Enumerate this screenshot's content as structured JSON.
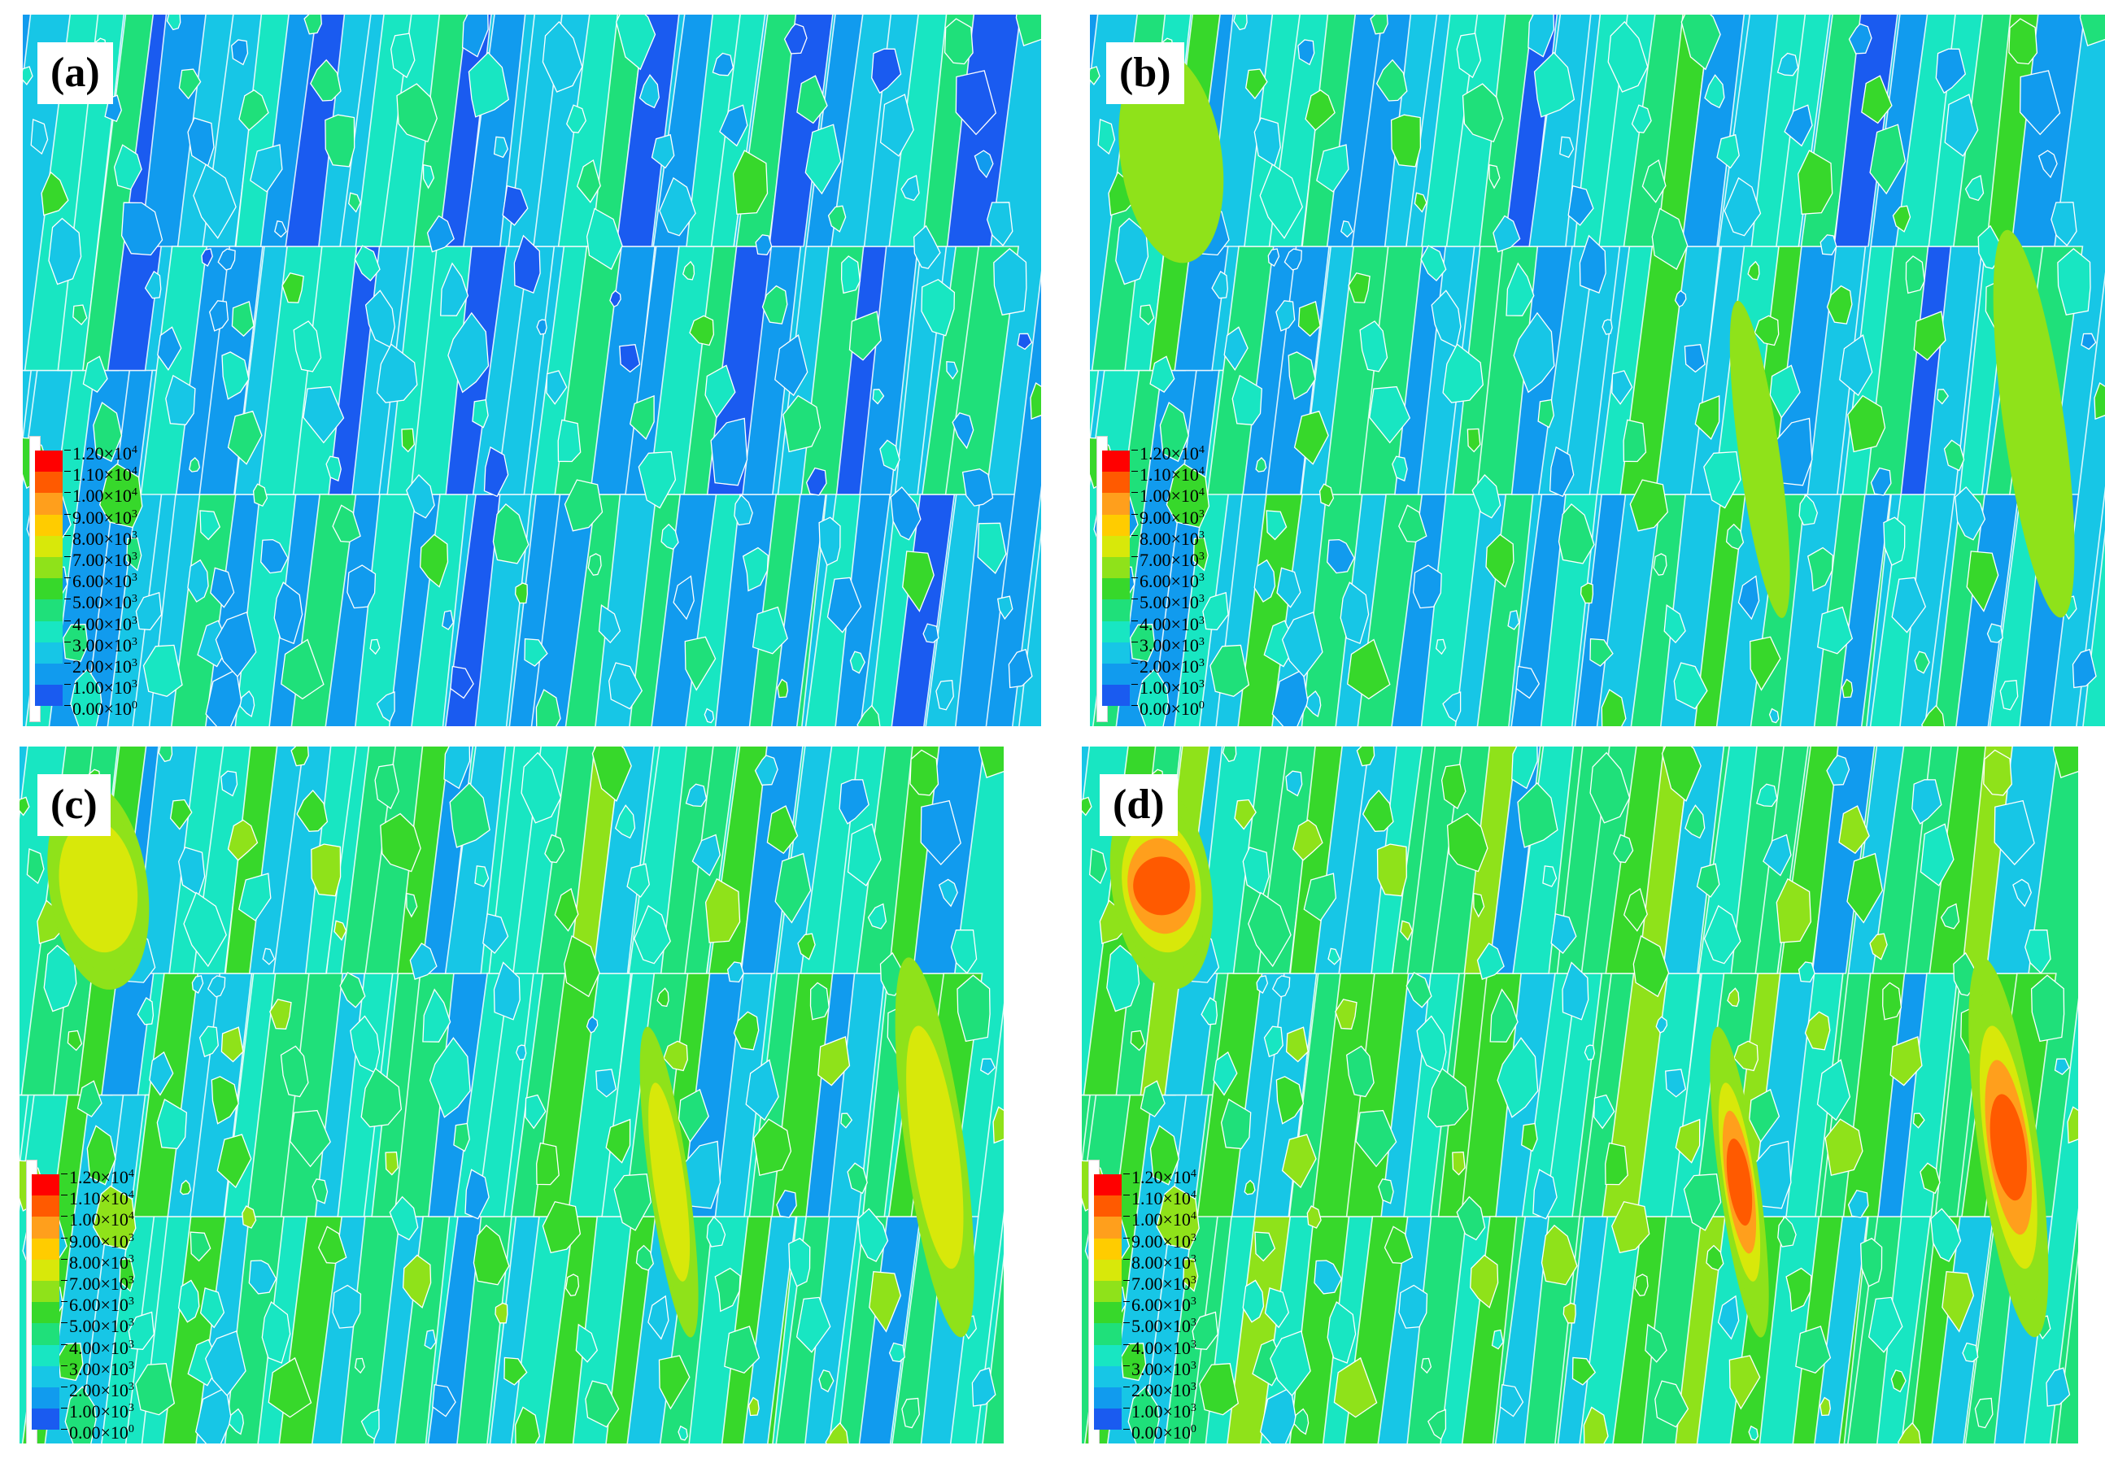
{
  "panels": [
    {
      "id": "a",
      "label": "(a)",
      "level": 0.15
    },
    {
      "id": "b",
      "label": "(b)",
      "level": 0.35
    },
    {
      "id": "c",
      "label": "(c)",
      "level": 0.55
    },
    {
      "id": "d",
      "label": "(d)",
      "level": 0.7
    }
  ],
  "legend": {
    "levels": [
      {
        "mantissa": "1.20",
        "exp": "4",
        "color": "#ff0000"
      },
      {
        "mantissa": "1.10",
        "exp": "4",
        "color": "#ff5a00"
      },
      {
        "mantissa": "1.00",
        "exp": "4",
        "color": "#ff9f1c"
      },
      {
        "mantissa": "9.00",
        "exp": "3",
        "color": "#ffcc00"
      },
      {
        "mantissa": "8.00",
        "exp": "3",
        "color": "#d8e80a"
      },
      {
        "mantissa": "7.00",
        "exp": "3",
        "color": "#8fe21a"
      },
      {
        "mantissa": "6.00",
        "exp": "3",
        "color": "#37d82b"
      },
      {
        "mantissa": "5.00",
        "exp": "3",
        "color": "#1fe07a"
      },
      {
        "mantissa": "4.00",
        "exp": "3",
        "color": "#18e6c2"
      },
      {
        "mantissa": "3.00",
        "exp": "3",
        "color": "#17c6e6"
      },
      {
        "mantissa": "2.00",
        "exp": "3",
        "color": "#119bee"
      },
      {
        "mantissa": "1.00",
        "exp": "3",
        "color": "#1a5bf0"
      },
      {
        "mantissa": "0.00",
        "exp": "0",
        "color": "#0022ff"
      }
    ],
    "times": "×"
  }
}
